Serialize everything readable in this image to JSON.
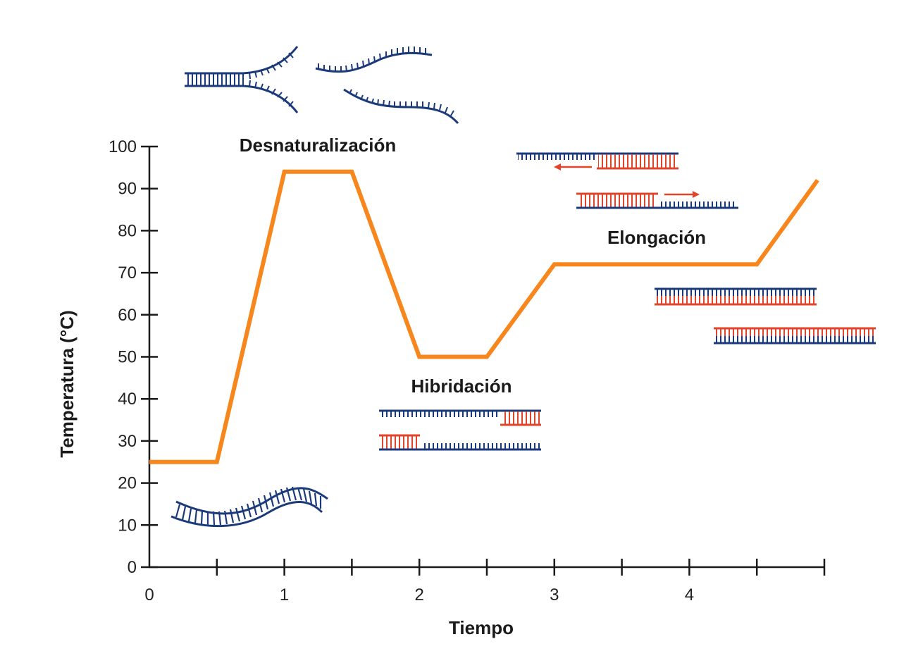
{
  "colors": {
    "curve": "#F7861C",
    "dna_blue": "#1B3A7A",
    "dna_red": "#E0442A",
    "axis": "#1a1a1a"
  },
  "chart_data": {
    "type": "line",
    "title": "",
    "xlabel": "Tiempo",
    "ylabel": "Temperatura (°C)",
    "xlim": [
      0,
      5
    ],
    "ylim": [
      0,
      100
    ],
    "x_ticks": [
      0,
      0.5,
      1,
      1.5,
      2,
      2.5,
      3,
      3.5,
      4,
      4.5,
      5
    ],
    "x_tick_labels": [
      "0",
      "1",
      "2",
      "3",
      "4"
    ],
    "x_tick_label_values": [
      0,
      1,
      2,
      3,
      4
    ],
    "y_ticks": [
      0,
      10,
      20,
      30,
      40,
      50,
      60,
      70,
      80,
      90,
      100
    ],
    "y_tick_labels": [
      "0",
      "10",
      "20",
      "30",
      "40",
      "50",
      "60",
      "70",
      "80",
      "90",
      "100"
    ],
    "grid": false,
    "series": [
      {
        "x": [
          0,
          0.5,
          1.0,
          1.5,
          2.0,
          2.5,
          3.0,
          4.5,
          4.95
        ],
        "y": [
          25,
          25,
          94,
          94,
          50,
          50,
          72,
          72,
          92
        ]
      }
    ],
    "annotations": [
      {
        "text": "Desnaturalización"
      },
      {
        "text": "Hibridación"
      },
      {
        "text": "Elongación"
      }
    ]
  }
}
